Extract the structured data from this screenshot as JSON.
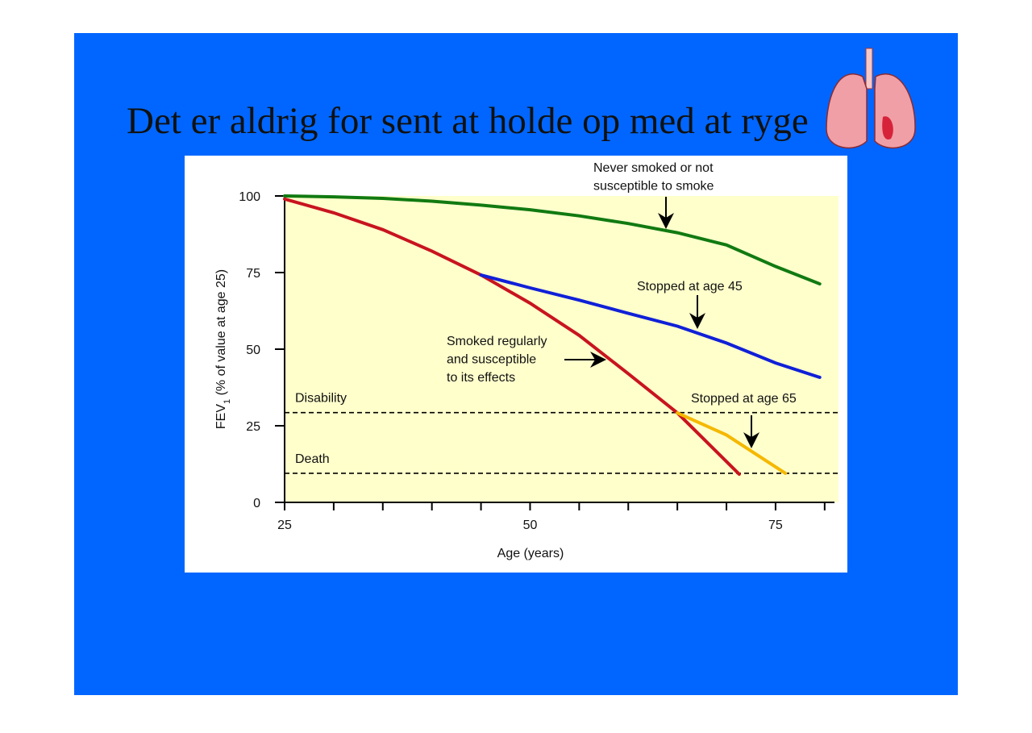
{
  "title": "Det er aldrig for sent at holde op med at ryge",
  "chart_data": {
    "type": "line",
    "xlabel": "Age (years)",
    "ylabel": {
      "text": "FEV",
      "sub": "1",
      "rest": " (% of value at age 25)"
    },
    "xlim": [
      25,
      81
    ],
    "ylim": [
      0,
      100
    ],
    "xticks": [
      25,
      50,
      75
    ],
    "xminor_ticks": [
      30,
      35,
      40,
      45,
      55,
      60,
      65,
      70,
      80
    ],
    "yticks": [
      0,
      25,
      50,
      75,
      100
    ],
    "background": "#ffffcc",
    "series": [
      {
        "label": [
          "Never smoked or not",
          "susceptible to smoke"
        ],
        "color": "#117a11",
        "x": [
          25,
          30,
          35,
          40,
          45,
          50,
          55,
          60,
          65,
          70,
          75,
          79.5
        ],
        "values": [
          100,
          99.7,
          99.2,
          98.3,
          97,
          95.5,
          93.5,
          91,
          88,
          84,
          77,
          71.3
        ]
      },
      {
        "label": [
          "Smoked regularly",
          "and susceptible",
          "to its effects"
        ],
        "color": "#c8141e",
        "x": [
          25,
          30,
          35,
          40,
          45,
          50,
          55,
          60,
          65,
          71.3
        ],
        "values": [
          99,
          94.5,
          89,
          82,
          74.2,
          65,
          54.5,
          42,
          29.2,
          9.2
        ]
      },
      {
        "label": [
          "Stopped at age 45"
        ],
        "color": "#1020d8",
        "x": [
          45,
          50,
          55,
          60,
          65,
          70,
          75,
          79.5
        ],
        "values": [
          74.2,
          70,
          66,
          61.7,
          57.5,
          52,
          45.5,
          40.8
        ]
      },
      {
        "label": [
          "Stopped at age 65"
        ],
        "color": "#f5b800",
        "x": [
          65,
          70,
          76
        ],
        "values": [
          29.2,
          22,
          9.5
        ]
      }
    ],
    "hlines": [
      {
        "label": "Disability",
        "value": 29.3
      },
      {
        "label": "Death",
        "value": 9.5
      }
    ]
  }
}
